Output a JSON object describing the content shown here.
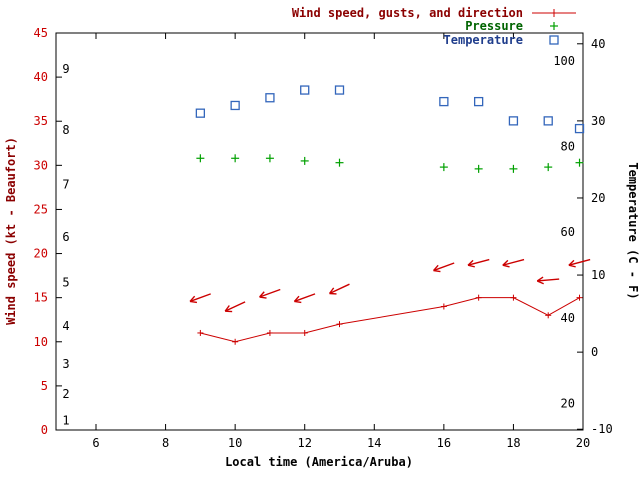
{
  "chart_data": {
    "type": "line",
    "title": "",
    "xlabel": "Local time (America/Aruba)",
    "ylabel_left": "Wind speed (kt - Beaufort)",
    "ylabel_right": "Temperature (C - F)",
    "x_ticks": [
      6,
      8,
      10,
      12,
      14,
      16,
      18,
      20
    ],
    "xlim": [
      4.85,
      20
    ],
    "wind_axis": {
      "ticks_kt": [
        0,
        5,
        10,
        15,
        20,
        25,
        30,
        35,
        40,
        45
      ],
      "lim_kt": [
        0,
        45
      ]
    },
    "beaufort_labels": [
      {
        "label": "1",
        "kt": 1.1
      },
      {
        "label": "2",
        "kt": 4.1
      },
      {
        "label": "3",
        "kt": 7.5
      },
      {
        "label": "4",
        "kt": 11.8
      },
      {
        "label": "5",
        "kt": 16.7
      },
      {
        "label": "6",
        "kt": 21.9
      },
      {
        "label": "7",
        "kt": 27.8
      },
      {
        "label": "8",
        "kt": 34.0
      },
      {
        "label": "9",
        "kt": 40.9
      }
    ],
    "temp_axis": {
      "ticks_c": [
        -10,
        0,
        10,
        20,
        30,
        40
      ],
      "lim_c": [
        -10.1,
        41.4
      ],
      "ticks_f": [
        20,
        40,
        60,
        80,
        100
      ]
    },
    "grid": false,
    "legend_position": "top-right",
    "series": {
      "times": [
        9,
        10,
        11,
        12,
        13,
        16,
        17,
        18,
        19,
        19.9
      ],
      "wind_speed_kt": [
        11,
        10,
        11,
        11,
        12,
        14,
        15,
        15,
        13,
        15
      ],
      "wind_gust_kt": [
        15,
        14,
        15.5,
        15,
        16,
        18.5,
        19,
        19,
        17,
        19
      ],
      "gust_arrow_angle_deg": [
        160,
        155,
        160,
        160,
        155,
        160,
        165,
        165,
        175,
        165
      ],
      "pressure_display": [
        30.8,
        30.8,
        30.8,
        30.5,
        30.3,
        29.8,
        29.6,
        29.6,
        29.8,
        30.3
      ],
      "temperature_c": [
        31,
        32,
        33,
        34,
        34,
        32.5,
        32.5,
        30,
        30,
        29
      ]
    }
  },
  "legend": {
    "items": [
      {
        "label": "Wind speed, gusts, and direction",
        "series": "wind"
      },
      {
        "label": "Pressure",
        "series": "pressure"
      },
      {
        "label": "Temperature",
        "series": "temperature"
      }
    ]
  },
  "colors": {
    "wind": "#cc0000",
    "wind_text": "#8b0000",
    "pressure": "#00a000",
    "pressure_text": "#006400",
    "temperature": "#3366bb",
    "temperature_text": "#1f3d8c",
    "axis": "#000000",
    "wind_tick_text": "#cc0000"
  }
}
